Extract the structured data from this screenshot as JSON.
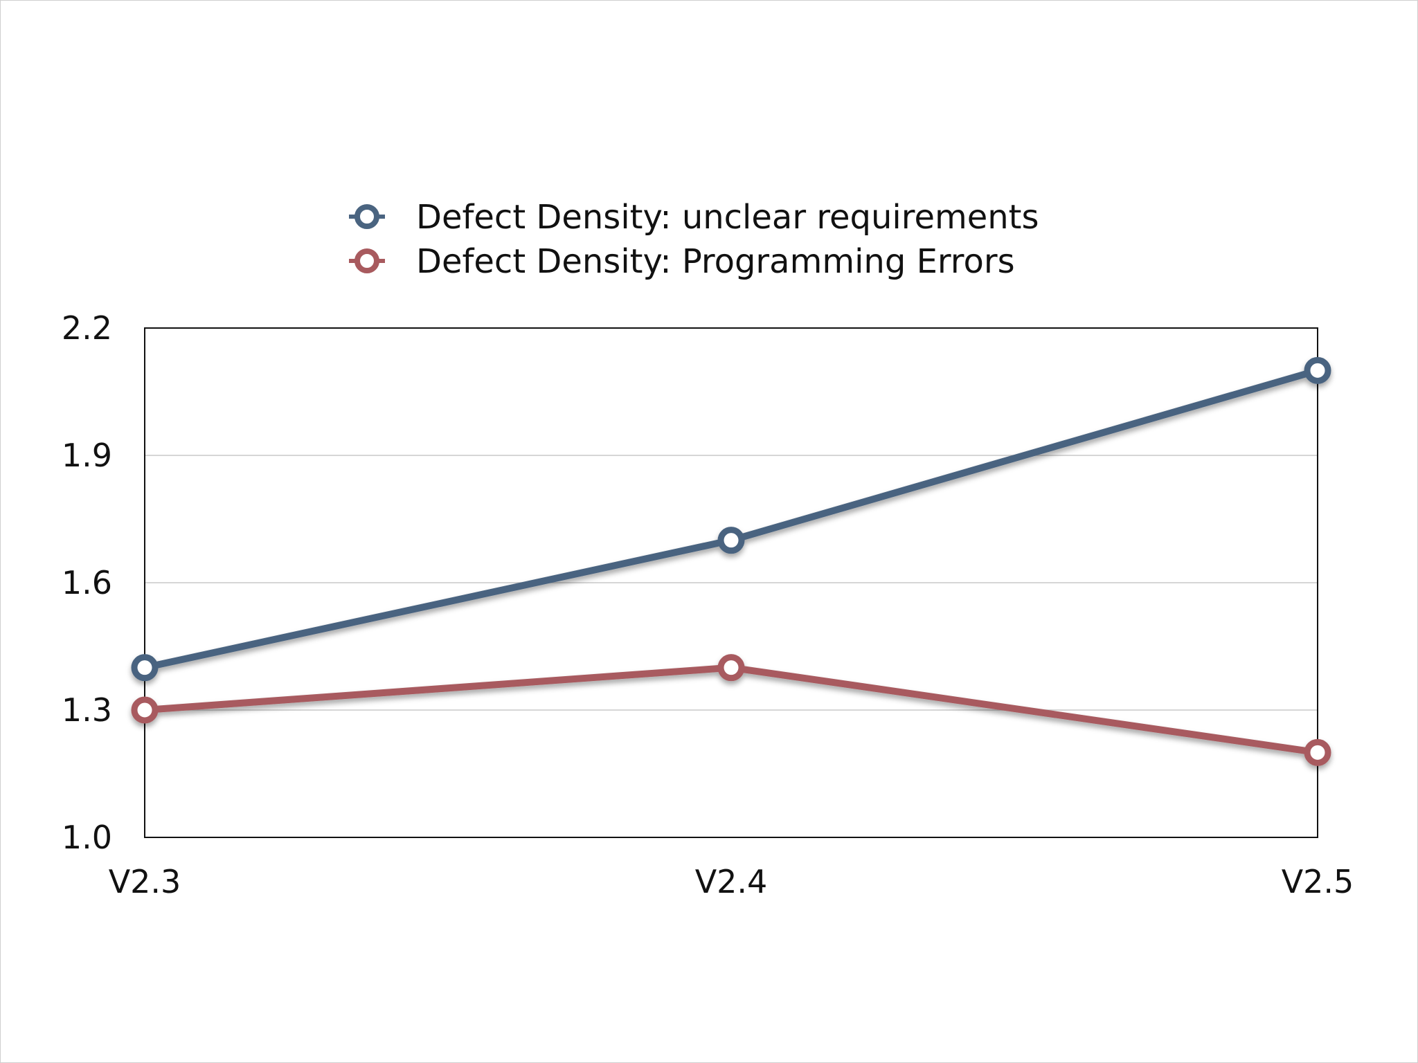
{
  "chart_data": {
    "type": "line",
    "title": "",
    "xlabel": "",
    "ylabel": "",
    "categories": [
      "V2.3",
      "V2.4",
      "V2.5"
    ],
    "ylim": [
      1.0,
      2.2
    ],
    "yticks": [
      "1.0",
      "1.3",
      "1.6",
      "1.9",
      "2.2"
    ],
    "grid": true,
    "legend_position": "top-center",
    "series": [
      {
        "name": "Defect Density: unclear requirements",
        "color": "#4a6480",
        "values": [
          1.4,
          1.7,
          2.1
        ]
      },
      {
        "name": "Defect Density: Programming Errors",
        "color": "#a85a5e",
        "values": [
          1.3,
          1.4,
          1.2
        ]
      }
    ]
  }
}
